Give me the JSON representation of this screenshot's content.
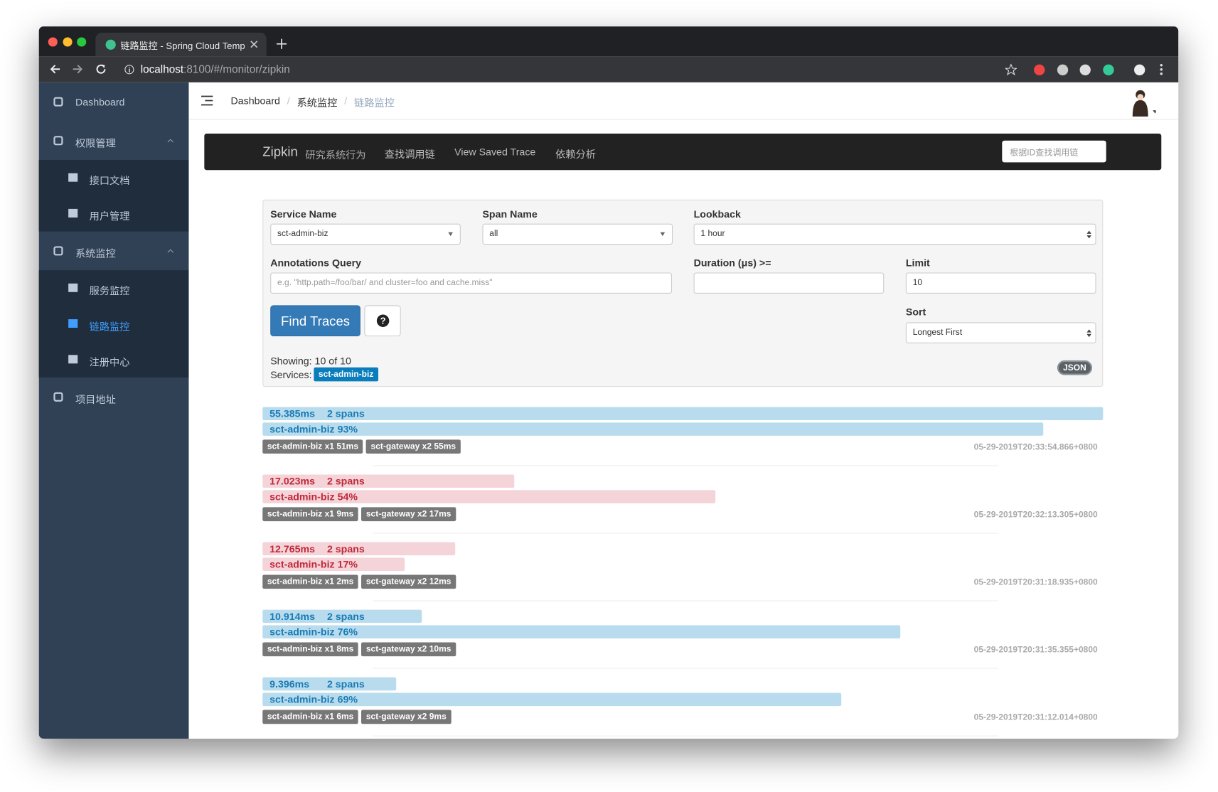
{
  "browser": {
    "tab_title": "链路监控 - Spring Cloud Templ",
    "url_host": "localhost",
    "url_rest": ":8100/#/monitor/zipkin"
  },
  "sidebar": [
    {
      "label": "Dashboard"
    },
    {
      "label": "权限管理",
      "children": [
        "接口文档",
        "用户管理"
      ]
    },
    {
      "label": "系统监控",
      "children": [
        "服务监控",
        "链路监控",
        "注册中心"
      ]
    },
    {
      "label": "项目地址"
    }
  ],
  "breadcrumb": {
    "items": [
      "Dashboard",
      "系统监控",
      "链路监控"
    ],
    "separator": "/"
  },
  "zipkin_nav": {
    "brand": "Zipkin",
    "tagline": "研究系统行为",
    "links": [
      "查找调用链",
      "View Saved Trace",
      "依赖分析"
    ],
    "search_placeholder": "根据ID查找调用链"
  },
  "search_form": {
    "service_name": {
      "label": "Service Name",
      "value": "sct-admin-biz"
    },
    "span_name": {
      "label": "Span Name",
      "value": "all"
    },
    "lookback": {
      "label": "Lookback",
      "value": "1 hour"
    },
    "annotations_query": {
      "label": "Annotations Query",
      "placeholder": "e.g. \"http.path=/foo/bar/ and cluster=foo and cache.miss\""
    },
    "duration": {
      "label": "Duration (μs) >="
    },
    "limit": {
      "label": "Limit",
      "value": "10"
    },
    "sort": {
      "label": "Sort",
      "value": "Longest First"
    },
    "find_button": "Find Traces",
    "help_button": "?",
    "showing": "Showing: 10 of 10",
    "services_label": "Services:",
    "services": [
      "sct-admin-biz"
    ],
    "json_button": "JSON"
  },
  "traces": [
    {
      "duration": "55.385ms",
      "spans": "2 spans",
      "service": "sct-admin-biz 93%",
      "tags": [
        "sct-admin-biz x1 51ms",
        "sct-gateway x2 55ms"
      ],
      "timestamp": "05-29-2019T20:33:54.866+0800"
    },
    {
      "duration": "17.023ms",
      "spans": "2 spans",
      "service": "sct-admin-biz 54%",
      "tags": [
        "sct-admin-biz x1 9ms",
        "sct-gateway x2 17ms"
      ],
      "timestamp": "05-29-2019T20:32:13.305+0800"
    },
    {
      "duration": "12.765ms",
      "spans": "2 spans",
      "service": "sct-admin-biz 17%",
      "tags": [
        "sct-admin-biz x1 2ms",
        "sct-gateway x2 12ms"
      ],
      "timestamp": "05-29-2019T20:31:18.935+0800"
    },
    {
      "duration": "10.914ms",
      "spans": "2 spans",
      "service": "sct-admin-biz 76%",
      "tags": [
        "sct-admin-biz x1 8ms",
        "sct-gateway x2 10ms"
      ],
      "timestamp": "05-29-2019T20:31:35.355+0800"
    },
    {
      "duration": "9.396ms",
      "spans": "2 spans",
      "service": "sct-admin-biz 69%",
      "tags": [
        "sct-admin-biz x1 6ms",
        "sct-gateway x2 9ms"
      ],
      "timestamp": "05-29-2019T20:31:12.014+0800"
    }
  ]
}
